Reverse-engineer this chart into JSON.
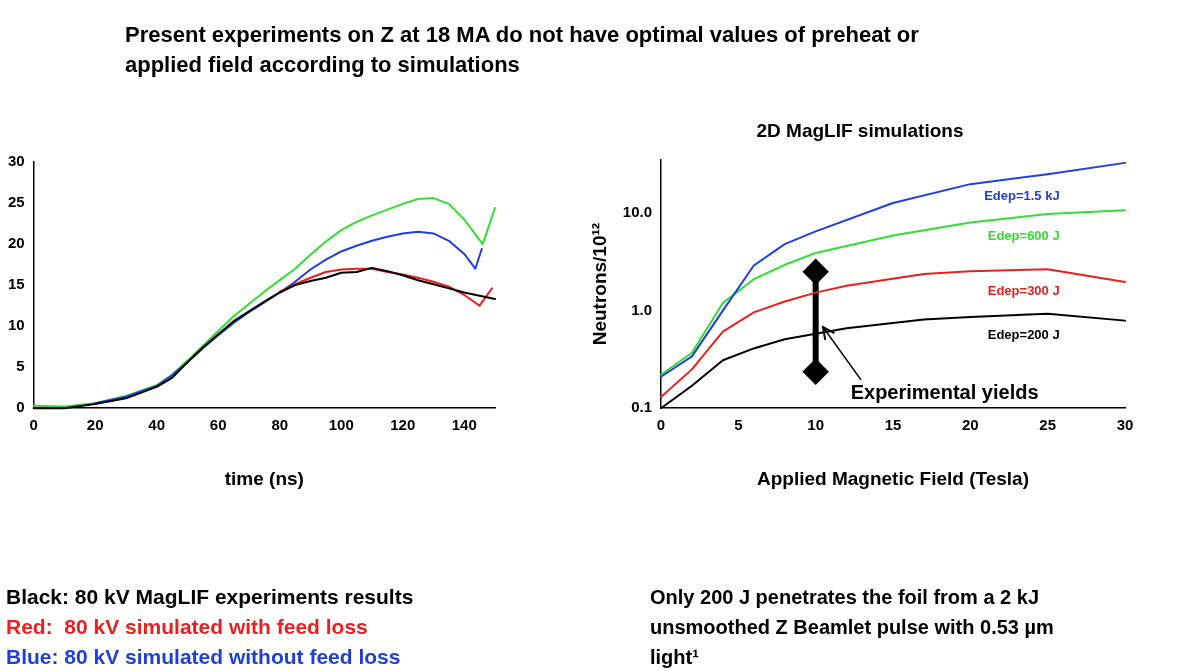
{
  "chart_data": [
    {
      "type": "line",
      "title": "Present experiments on Z at 18 MA do not have optimal values of preheat or applied field according to simulations",
      "xlabel": "time (ns)",
      "xlim": [
        0,
        150
      ],
      "xticks": [
        0,
        20,
        40,
        60,
        80,
        100,
        120,
        140
      ],
      "ylim": [
        0,
        30
      ],
      "yticks": [
        0,
        5,
        10,
        15,
        20,
        25,
        30
      ],
      "grid": false,
      "legend": "bottom",
      "marker": "none",
      "series": [
        {
          "name": "Black: 80 kV MagLIF experiments results",
          "color": "#000000",
          "x": [
            0,
            10,
            20,
            30,
            40,
            45,
            50,
            55,
            60,
            65,
            70,
            75,
            80,
            85,
            90,
            95,
            100,
            105,
            110,
            115,
            120,
            125,
            130,
            135,
            140,
            145,
            150
          ],
          "values": [
            0,
            0,
            0.5,
            1.2,
            2.6,
            3.7,
            5.6,
            7.4,
            9.0,
            10.6,
            11.8,
            13.0,
            14.1,
            15.0,
            15.5,
            15.9,
            16.5,
            16.6,
            17.1,
            16.7,
            16.2,
            15.6,
            15.1,
            14.6,
            14.1,
            13.7,
            13.3
          ]
        },
        {
          "name": "Red:  80 kV simulated with feed loss",
          "color": "#e82020",
          "x": [
            80,
            85,
            90,
            95,
            100,
            105,
            110,
            115,
            120,
            125,
            130,
            135,
            140,
            145,
            149
          ],
          "values": [
            14.2,
            15.1,
            15.9,
            16.6,
            16.9,
            17.0,
            17.0,
            16.6,
            16.3,
            15.9,
            15.4,
            14.8,
            13.8,
            12.5,
            14.6
          ]
        },
        {
          "name": "Blue: 80 kV simulated without feed loss",
          "color": "#1f3fdd",
          "x": [
            20,
            30,
            40,
            45,
            50,
            55,
            60,
            65,
            70,
            75,
            80,
            85,
            90,
            95,
            100,
            105,
            110,
            115,
            120,
            125,
            130,
            135,
            140,
            143.6,
            145.7
          ],
          "values": [
            0.6,
            1.4,
            2.7,
            4.0,
            5.6,
            7.3,
            8.9,
            10.4,
            11.7,
            12.9,
            14.1,
            15.4,
            16.9,
            18.1,
            19.1,
            19.8,
            20.4,
            20.9,
            21.3,
            21.5,
            21.3,
            20.4,
            18.8,
            17.0,
            19.4
          ]
        },
        {
          "name": null,
          "color": "#33dd33",
          "x": [
            0,
            10,
            20,
            30,
            40,
            45,
            50,
            55,
            60,
            65,
            70,
            75,
            80,
            85,
            90,
            95,
            100,
            105,
            110,
            115,
            120,
            125,
            130,
            135,
            140,
            144,
            146,
            150
          ],
          "values": [
            0.3,
            0.2,
            0.6,
            1.5,
            2.8,
            4.1,
            5.8,
            7.6,
            9.4,
            11.2,
            12.7,
            14.2,
            15.6,
            17.0,
            18.7,
            20.3,
            21.7,
            22.7,
            23.5,
            24.2,
            24.9,
            25.5,
            25.6,
            24.9,
            23.0,
            21.0,
            20.0,
            24.4
          ]
        }
      ]
    },
    {
      "type": "line",
      "title": "2D MagLIF simulations",
      "xlabel": "Applied Magnetic Field (Tesla)",
      "ylabel": "Neutrons/10¹²",
      "log": "y",
      "xlim": [
        0,
        30
      ],
      "xticks": [
        0,
        5,
        10,
        15,
        20,
        25,
        30
      ],
      "ylim": [
        0.1,
        35
      ],
      "yticks": [
        0.1,
        {
          "value": 1,
          "label": "1.0"
        },
        {
          "value": 10,
          "label": "10.0"
        }
      ],
      "grid": false,
      "marker": "none",
      "annotations": [
        "Only 200 J penetrates the foil from a 2 kJ unsmoothed Z Beamlet pulse with 0.53 µm light¹"
      ],
      "series": [
        {
          "name": "Edep=1.5 kJ",
          "color": "#1f3fdd",
          "x": [
            0,
            2,
            4,
            6,
            8,
            10,
            15,
            20,
            25,
            30
          ],
          "values": [
            0.21,
            0.34,
            1.0,
            2.9,
            4.8,
            6.5,
            12.7,
            19.8,
            25,
            32.7
          ]
        },
        {
          "name": "Edep=600 J",
          "color": "#33dd33",
          "x": [
            0,
            2,
            4,
            6,
            8,
            10,
            15,
            20,
            25,
            30
          ],
          "values": [
            0.22,
            0.37,
            1.2,
            2.1,
            2.95,
            3.9,
            5.9,
            8.0,
            9.8,
            10.7
          ]
        },
        {
          "name": "Edep=300 J",
          "color": "#e82020",
          "x": [
            0,
            2,
            4,
            6,
            8,
            10,
            12,
            17,
            20,
            25,
            30
          ],
          "values": [
            0.13,
            0.25,
            0.61,
            0.96,
            1.24,
            1.53,
            1.8,
            2.37,
            2.54,
            2.65,
            1.97
          ]
        },
        {
          "name": "Edep=200 J",
          "color": "#000000",
          "x": [
            0,
            2,
            4,
            6,
            8,
            10,
            12,
            17,
            20,
            25,
            30
          ],
          "values": [
            0.1,
            0.17,
            0.31,
            0.41,
            0.51,
            0.58,
            0.66,
            0.81,
            0.86,
            0.93,
            0.79
          ]
        },
        {
          "name": "Experimental yields",
          "color": "#000000",
          "marker": "diamond",
          "x": [
            10,
            10
          ],
          "values": [
            0.237,
            2.5
          ]
        }
      ]
    }
  ]
}
